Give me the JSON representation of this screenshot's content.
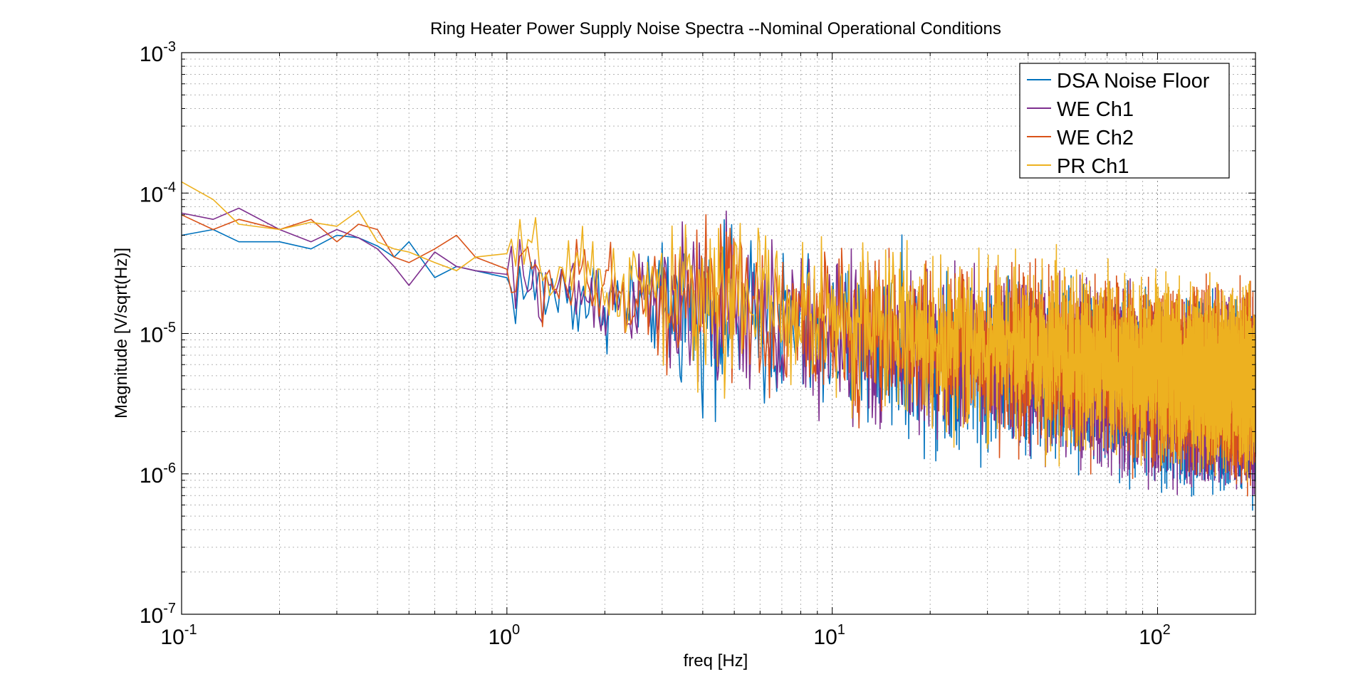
{
  "chart_data": {
    "type": "line",
    "title": "Ring Heater Power Supply Noise Spectra --Nominal Operational Conditions",
    "xlabel": "freq [Hz]",
    "ylabel": "Magnitude [V/sqrt(Hz)]",
    "xscale": "log",
    "yscale": "log",
    "xlim": [
      0.1,
      200
    ],
    "ylim": [
      1e-07,
      0.001
    ],
    "grid": true,
    "legend_position": "top-right",
    "x_ticks": [
      {
        "value": 0.1,
        "base": "10",
        "exp": "-1"
      },
      {
        "value": 1,
        "base": "10",
        "exp": "0"
      },
      {
        "value": 10,
        "base": "10",
        "exp": "1"
      },
      {
        "value": 100,
        "base": "10",
        "exp": "2"
      }
    ],
    "y_ticks": [
      {
        "value": 1e-07,
        "base": "10",
        "exp": "-7"
      },
      {
        "value": 1e-06,
        "base": "10",
        "exp": "-6"
      },
      {
        "value": 1e-05,
        "base": "10",
        "exp": "-5"
      },
      {
        "value": 0.0001,
        "base": "10",
        "exp": "-4"
      },
      {
        "value": 0.001,
        "base": "10",
        "exp": "-3"
      }
    ],
    "series": [
      {
        "name": "DSA Noise Floor",
        "color": "#0072bd",
        "x": [
          0.1,
          0.125,
          0.15,
          0.2,
          0.25,
          0.3,
          0.35,
          0.4,
          0.45,
          0.5,
          0.6,
          0.7,
          0.8,
          1,
          1.5,
          2,
          3,
          5,
          7,
          10,
          15,
          20,
          30,
          50,
          70,
          100,
          150,
          200
        ],
        "y": [
          5e-05,
          5.5e-05,
          4.5e-05,
          4.5e-05,
          4e-05,
          5e-05,
          4.8e-05,
          4.2e-05,
          3.5e-05,
          4.5e-05,
          2.5e-05,
          3e-05,
          2.8e-05,
          2.2e-05,
          1.9e-05,
          1.7e-05,
          1.5e-05,
          1.3e-05,
          1.1e-05,
          9e-06,
          8e-06,
          7e-06,
          6e-06,
          5e-06,
          4.5e-06,
          4e-06,
          3.5e-06,
          3.2e-06
        ]
      },
      {
        "name": "WE Ch1",
        "color": "#7e2f8e",
        "x": [
          0.1,
          0.125,
          0.15,
          0.2,
          0.25,
          0.3,
          0.35,
          0.4,
          0.45,
          0.5,
          0.6,
          0.7,
          0.8,
          1,
          1.5,
          2,
          3,
          5,
          7,
          10,
          15,
          20,
          30,
          50,
          70,
          100,
          150,
          200
        ],
        "y": [
          7.2e-05,
          6.5e-05,
          7.8e-05,
          5.5e-05,
          4.5e-05,
          5.5e-05,
          4.8e-05,
          4e-05,
          3e-05,
          2.2e-05,
          3.8e-05,
          3e-05,
          2.8e-05,
          2.4e-05,
          2.1e-05,
          1.8e-05,
          1.6e-05,
          1.35e-05,
          1.15e-05,
          9.5e-06,
          8.3e-06,
          7.3e-06,
          6.3e-06,
          5.3e-06,
          4.8e-06,
          4.3e-06,
          3.8e-06,
          3.4e-06
        ]
      },
      {
        "name": "WE Ch2",
        "color": "#d95319",
        "x": [
          0.1,
          0.125,
          0.15,
          0.2,
          0.25,
          0.3,
          0.35,
          0.4,
          0.45,
          0.5,
          0.6,
          0.7,
          0.8,
          1,
          1.5,
          2,
          3,
          5,
          7,
          10,
          15,
          20,
          30,
          50,
          70,
          100,
          150,
          200
        ],
        "y": [
          7e-05,
          5.5e-05,
          6.5e-05,
          5.5e-05,
          6.5e-05,
          4.5e-05,
          6e-05,
          5.5e-05,
          3.5e-05,
          3.2e-05,
          4e-05,
          5e-05,
          3.5e-05,
          2.7e-05,
          2.3e-05,
          2e-05,
          1.8e-05,
          1.5e-05,
          1.3e-05,
          1.1e-05,
          9.5e-06,
          8.5e-06,
          7.5e-06,
          6.5e-06,
          5.8e-06,
          5.2e-06,
          4.6e-06,
          4.2e-06
        ]
      },
      {
        "name": "PR Ch1",
        "color": "#edb120",
        "x": [
          0.1,
          0.125,
          0.15,
          0.2,
          0.25,
          0.3,
          0.35,
          0.4,
          0.45,
          0.5,
          0.6,
          0.7,
          0.8,
          1,
          1.5,
          2,
          3,
          5,
          7,
          10,
          15,
          20,
          30,
          50,
          70,
          100,
          150,
          200
        ],
        "y": [
          0.00012,
          9e-05,
          6e-05,
          5.5e-05,
          6.2e-05,
          5.8e-05,
          7.5e-05,
          4.5e-05,
          4e-05,
          3.8e-05,
          3.2e-05,
          2.8e-05,
          3.5e-05,
          3.6e-05,
          2.6e-05,
          2.3e-05,
          2e-05,
          1.7e-05,
          1.5e-05,
          1.3e-05,
          1.1e-05,
          9.5e-06,
          8.3e-06,
          7e-06,
          6.2e-06,
          5.5e-06,
          4.9e-06,
          4.5e-06
        ]
      }
    ]
  }
}
